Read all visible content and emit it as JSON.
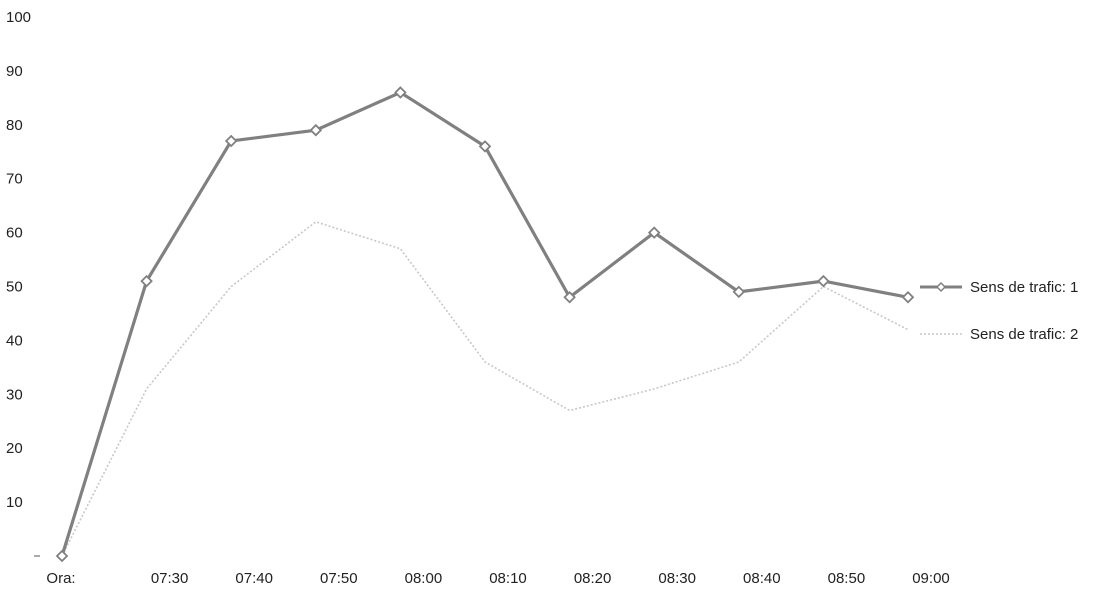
{
  "chart_data": {
    "type": "line",
    "categories": [
      "Ora:",
      "07:30",
      "07:40",
      "07:50",
      "08:00",
      "08:10",
      "08:20",
      "08:30",
      "08:40",
      "08:50",
      "09:00"
    ],
    "y_ticks": [
      "10",
      "20",
      "30",
      "40",
      "50",
      "60",
      "70",
      "80",
      "90",
      "100"
    ],
    "ylim": [
      0,
      100
    ],
    "grid": false,
    "legend_position": "right",
    "series": [
      {
        "name": "Sens de trafic: 1",
        "color": "#808080",
        "values": [
          0,
          51,
          77,
          79,
          86,
          76,
          48,
          60,
          49,
          51,
          48
        ]
      },
      {
        "name": "Sens de trafic: 2",
        "color": "#c8c8c8",
        "values": [
          0,
          31,
          50,
          62,
          57,
          36,
          27,
          31,
          36,
          50,
          42
        ]
      }
    ]
  }
}
